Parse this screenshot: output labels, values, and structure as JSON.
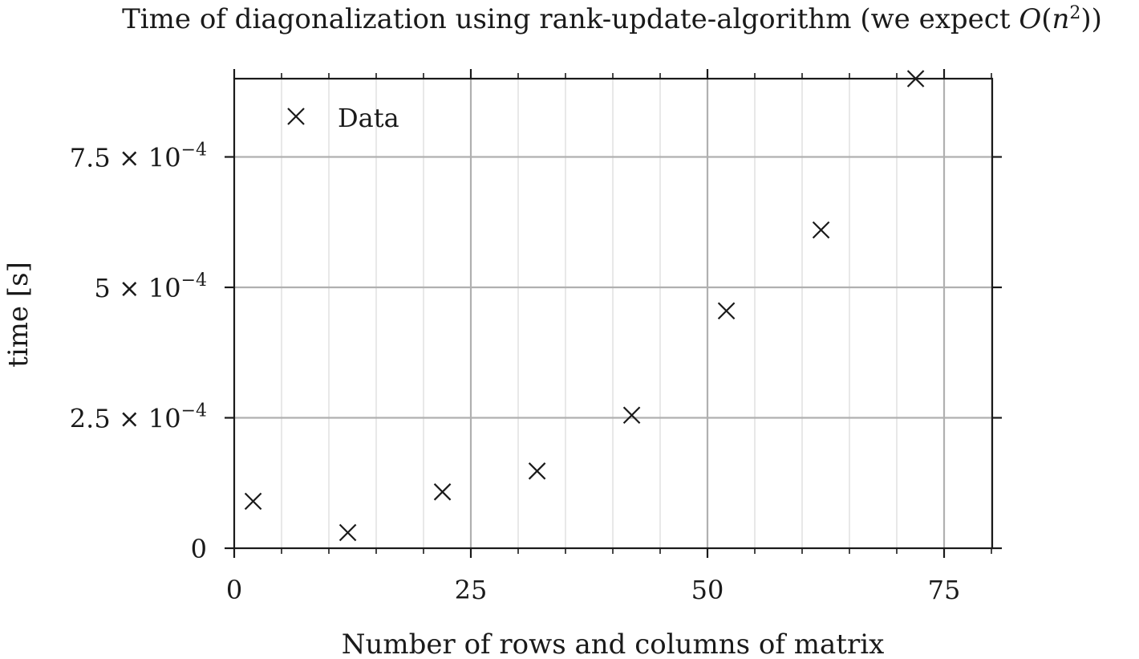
{
  "chart_data": {
    "type": "scatter",
    "title": "Time of diagonalization using rank-update-algorithm (we expect O(n²))",
    "title_parts": {
      "prefix": "Time of diagonalization using rank-update-algorithm (we expect ",
      "math_O": "O",
      "math_open": "(",
      "math_n": "n",
      "math_sup": "2",
      "math_close": "))"
    },
    "xlabel": "Number of rows and columns of matrix",
    "ylabel": "time [s]",
    "xlim": [
      0,
      80.5
    ],
    "ylim": [
      0,
      0.0009
    ],
    "x_major_ticks": [
      {
        "value": 0,
        "label": "0"
      },
      {
        "value": 25,
        "label": "25"
      },
      {
        "value": 50,
        "label": "50"
      },
      {
        "value": 75,
        "label": "75"
      }
    ],
    "x_minor_ticks": [
      5,
      10,
      15,
      20,
      30,
      35,
      40,
      45,
      55,
      60,
      65,
      70,
      80
    ],
    "y_major_ticks": [
      {
        "value": 0,
        "mantissa": "0",
        "times": "",
        "base": "",
        "exponent": ""
      },
      {
        "value": 0.00025,
        "mantissa": "2.5",
        "times": "×",
        "base": "10",
        "exponent": "−4"
      },
      {
        "value": 0.0005,
        "mantissa": "5",
        "times": "×",
        "base": "10",
        "exponent": "−4"
      },
      {
        "value": 0.00075,
        "mantissa": "7.5",
        "times": "×",
        "base": "10",
        "exponent": "−4"
      }
    ],
    "grid": true,
    "legend_position": "top-left",
    "series": [
      {
        "name": "Data",
        "marker": "x",
        "color": "#1a1a1a",
        "points": [
          {
            "x": 2,
            "y": 9e-05
          },
          {
            "x": 12,
            "y": 3e-05
          },
          {
            "x": 22,
            "y": 0.000108
          },
          {
            "x": 32,
            "y": 0.000148
          },
          {
            "x": 42,
            "y": 0.000255
          },
          {
            "x": 52,
            "y": 0.000455
          },
          {
            "x": 62,
            "y": 0.00061
          },
          {
            "x": 72,
            "y": 0.0009
          }
        ]
      }
    ]
  },
  "colors": {
    "axis": "#1a1a1a",
    "major_grid": "#b0b0b0",
    "minor_grid": "#dedede",
    "marker": "#1a1a1a"
  }
}
